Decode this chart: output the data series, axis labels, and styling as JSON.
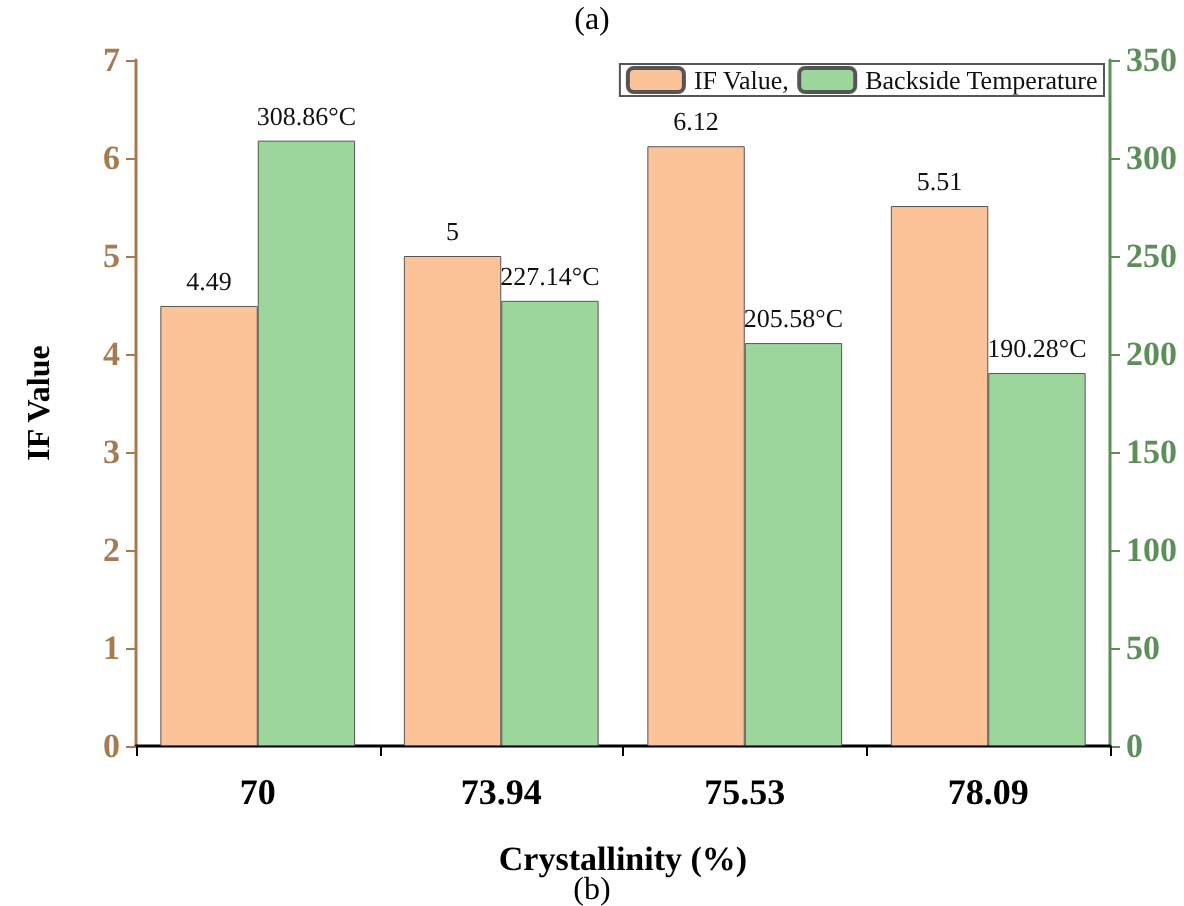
{
  "chart_data": {
    "type": "bar",
    "xlabel": "Crystallinity (%)",
    "ylabel": "IF Value",
    "categories": [
      "70",
      "73.94",
      "75.53",
      "78.09"
    ],
    "series": [
      {
        "name": "IF Value,",
        "color": "#fbc397",
        "values": [
          4.49,
          5,
          6.12,
          5.51
        ],
        "value_labels": [
          "4.49",
          "5",
          "6.12",
          "5.51"
        ]
      },
      {
        "name": "Backside Temperature",
        "color": "#9dd69c",
        "axis": "y2",
        "values": [
          308.86,
          227.14,
          205.58,
          190.28
        ],
        "value_labels": [
          "308.86°C",
          "227.14°C",
          "205.58°C",
          "190.28°C"
        ]
      }
    ],
    "ylim": [
      0,
      7
    ],
    "yticks": [
      0,
      1,
      2,
      3,
      4,
      5,
      6,
      7
    ],
    "y2lim": [
      0,
      350
    ],
    "y2ticks": [
      0,
      50,
      100,
      150,
      200,
      250,
      300,
      350
    ],
    "grid": false,
    "legend": "top right",
    "annotations": [
      "(a)",
      "(b)"
    ]
  }
}
